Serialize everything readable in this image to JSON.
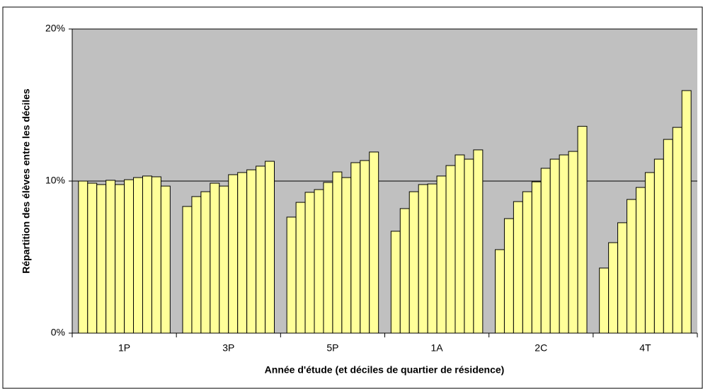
{
  "chart_data": {
    "type": "bar",
    "ylabel": "Répartition des élèves entre les déciles",
    "xlabel": "Année d'étude (et déciles de quartier de résidence)",
    "categories": [
      "1P",
      "3P",
      "5P",
      "1A",
      "2C",
      "4T"
    ],
    "series": [
      {
        "color": "#ffff99",
        "values": [
          10.0,
          8.33,
          7.63,
          6.7,
          5.49,
          4.28
        ]
      },
      {
        "color": "#ffff99",
        "values": [
          9.86,
          8.98,
          8.6,
          8.19,
          7.53,
          5.95
        ]
      },
      {
        "color": "#ffff99",
        "values": [
          9.77,
          9.3,
          9.26,
          9.3,
          8.65,
          7.26
        ]
      },
      {
        "color": "#ffff99",
        "values": [
          10.05,
          9.86,
          9.44,
          9.77,
          9.3,
          8.79
        ]
      },
      {
        "color": "#ffff99",
        "values": [
          9.77,
          9.67,
          9.91,
          9.81,
          9.95,
          9.58
        ]
      },
      {
        "color": "#ffff99",
        "values": [
          10.09,
          10.42,
          10.6,
          10.33,
          10.84,
          10.56
        ]
      },
      {
        "color": "#ffff99",
        "values": [
          10.23,
          10.56,
          10.23,
          11.02,
          11.44,
          11.44
        ]
      },
      {
        "color": "#ffff99",
        "values": [
          10.33,
          10.74,
          11.21,
          11.72,
          11.72,
          12.74
        ]
      },
      {
        "color": "#ffff99",
        "values": [
          10.28,
          10.98,
          11.35,
          11.44,
          11.95,
          13.53
        ]
      },
      {
        "color": "#ffff99",
        "values": [
          9.67,
          11.3,
          11.91,
          12.05,
          13.6,
          15.95
        ]
      }
    ],
    "ylim": [
      0,
      20
    ],
    "yticks": [
      {
        "value": 0,
        "label": "0%"
      },
      {
        "value": 10,
        "label": "10%"
      },
      {
        "value": 20,
        "label": "20%"
      }
    ],
    "grid": true,
    "plot_background": "#c0c0c0"
  }
}
